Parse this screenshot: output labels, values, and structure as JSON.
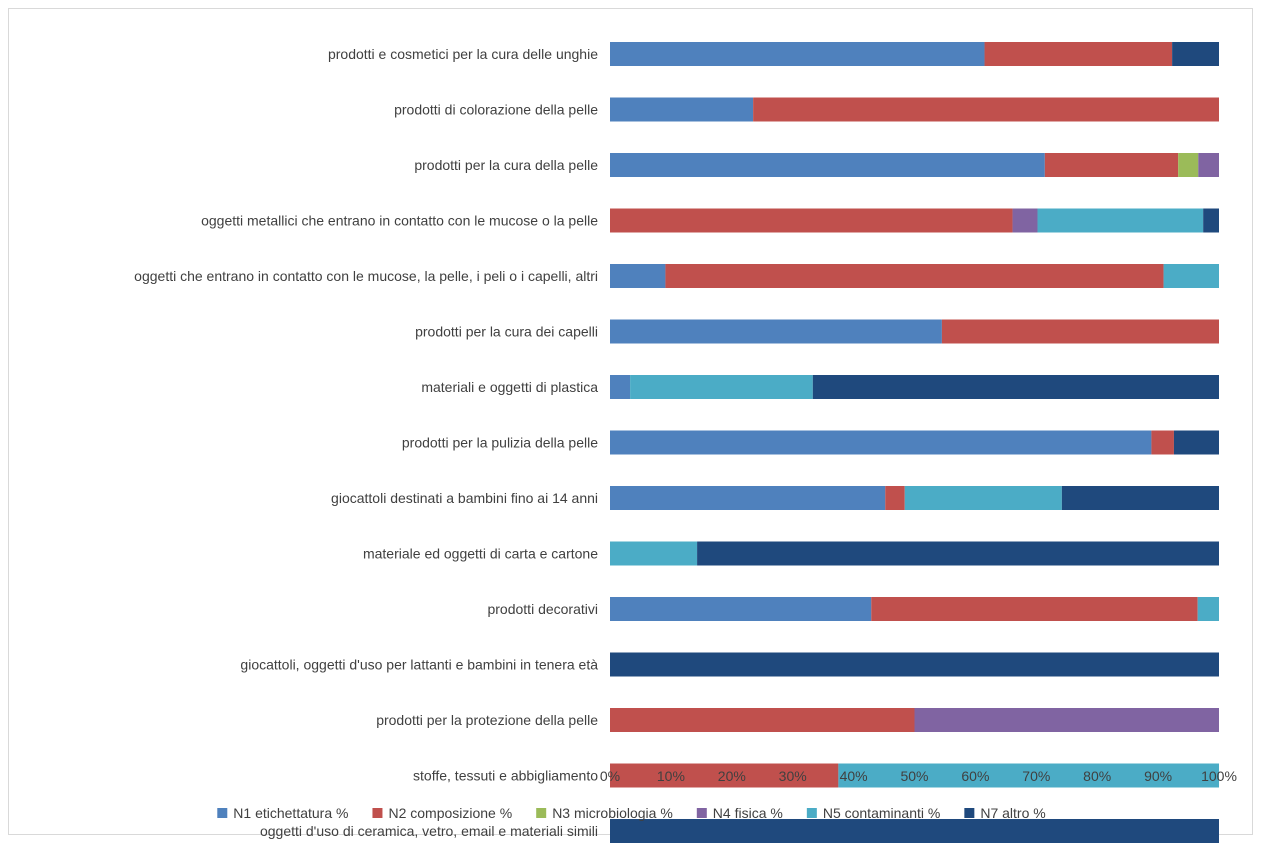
{
  "chart_data": {
    "type": "bar",
    "orientation": "horizontal",
    "stacked": "percent",
    "categories": [
      "prodotti e cosmetici per la cura delle unghie",
      "prodotti di colorazione della pelle",
      "prodotti per la cura della pelle",
      "oggetti metallici che entrano in contatto con le mucose o la pelle",
      "oggetti che entrano in contatto con le mucose, la pelle, i peli o i capelli, altri",
      "prodotti per la cura dei capelli",
      "materiali e oggetti di plastica",
      "prodotti per la pulizia della pelle",
      "giocattoli destinati a bambini fino ai 14 anni",
      "materiale ed oggetti di carta e cartone",
      "prodotti decorativi",
      "giocattoli, oggetti d'uso per lattanti e bambini in tenera età",
      "prodotti per la protezione della pelle",
      "stoffe, tessuti e abbigliamento",
      "oggetti d'uso di ceramica, vetro, email e materiali simili"
    ],
    "series": [
      {
        "name": "N1 etichettatura %",
        "color": "#4f81bd",
        "values": [
          61.5,
          23.5,
          71.4,
          0,
          9.1,
          54.5,
          3.3,
          88.9,
          45.2,
          0,
          42.9,
          0,
          0,
          0,
          0
        ]
      },
      {
        "name": "N2 composizione %",
        "color": "#c0504d",
        "values": [
          30.8,
          76.5,
          21.9,
          66.1,
          81.8,
          45.5,
          0,
          3.7,
          3.2,
          0,
          53.6,
          0,
          50.0,
          37.5,
          0
        ]
      },
      {
        "name": "N3 microbiologia %",
        "color": "#9bbb59",
        "values": [
          0,
          0,
          3.3,
          0,
          0,
          0,
          0,
          0,
          0,
          0,
          0,
          0,
          0,
          0,
          0
        ]
      },
      {
        "name": "N4 fisica %",
        "color": "#8064a2",
        "values": [
          0,
          0,
          3.4,
          4.1,
          0,
          0,
          0,
          0,
          0,
          0,
          0,
          0,
          50.0,
          0,
          0
        ]
      },
      {
        "name": "N5 contaminanti %",
        "color": "#4bacc6",
        "values": [
          0,
          0,
          0,
          27.2,
          9.1,
          0,
          30.0,
          0,
          25.8,
          14.3,
          3.5,
          0,
          0,
          62.5,
          0
        ]
      },
      {
        "name": "N7 altro %",
        "color": "#1f497d",
        "values": [
          7.7,
          0,
          0,
          2.6,
          0,
          0,
          66.7,
          7.4,
          25.8,
          85.7,
          0,
          100,
          0,
          0,
          100
        ]
      }
    ],
    "x_ticks": [
      "0%",
      "10%",
      "20%",
      "30%",
      "40%",
      "50%",
      "60%",
      "70%",
      "80%",
      "90%",
      "100%"
    ],
    "xlim": [
      0,
      100
    ],
    "grid": false,
    "legend_position": "bottom"
  }
}
